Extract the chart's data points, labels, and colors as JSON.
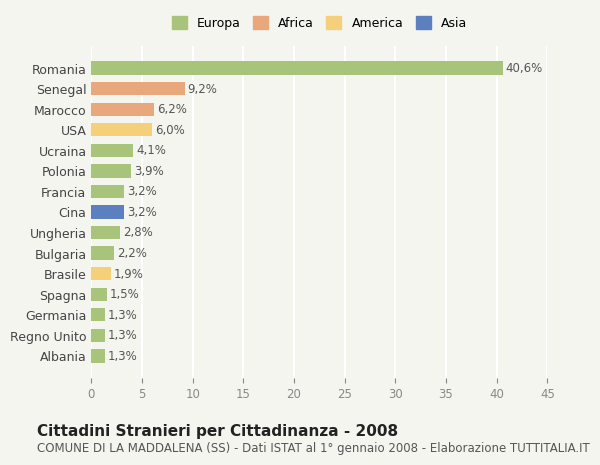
{
  "countries": [
    "Romania",
    "Senegal",
    "Marocco",
    "USA",
    "Ucraina",
    "Polonia",
    "Francia",
    "Cina",
    "Ungheria",
    "Bulgaria",
    "Brasile",
    "Spagna",
    "Germania",
    "Regno Unito",
    "Albania"
  ],
  "values": [
    40.6,
    9.2,
    6.2,
    6.0,
    4.1,
    3.9,
    3.2,
    3.2,
    2.8,
    2.2,
    1.9,
    1.5,
    1.3,
    1.3,
    1.3
  ],
  "labels": [
    "40,6%",
    "9,2%",
    "6,2%",
    "6,0%",
    "4,1%",
    "3,9%",
    "3,2%",
    "3,2%",
    "2,8%",
    "2,2%",
    "1,9%",
    "1,5%",
    "1,3%",
    "1,3%",
    "1,3%"
  ],
  "colors": [
    "#a8c47a",
    "#e8a87c",
    "#e8a87c",
    "#f5d07a",
    "#a8c47a",
    "#a8c47a",
    "#a8c47a",
    "#5b7fbf",
    "#a8c47a",
    "#a8c47a",
    "#f5d07a",
    "#a8c47a",
    "#a8c47a",
    "#a8c47a",
    "#a8c47a"
  ],
  "legend_labels": [
    "Europa",
    "Africa",
    "America",
    "Asia"
  ],
  "legend_colors": [
    "#a8c47a",
    "#e8a87c",
    "#f5d07a",
    "#5b7fbf"
  ],
  "xlim": [
    0,
    45
  ],
  "xticks": [
    0,
    5,
    10,
    15,
    20,
    25,
    30,
    35,
    40,
    45
  ],
  "title": "Cittadini Stranieri per Cittadinanza - 2008",
  "subtitle": "COMUNE DI LA MADDALENA (SS) - Dati ISTAT al 1° gennaio 2008 - Elaborazione TUTTITALIA.IT",
  "background_color": "#f5f5f0",
  "grid_color": "#ffffff",
  "label_fontsize": 8.5,
  "title_fontsize": 11,
  "subtitle_fontsize": 8.5
}
